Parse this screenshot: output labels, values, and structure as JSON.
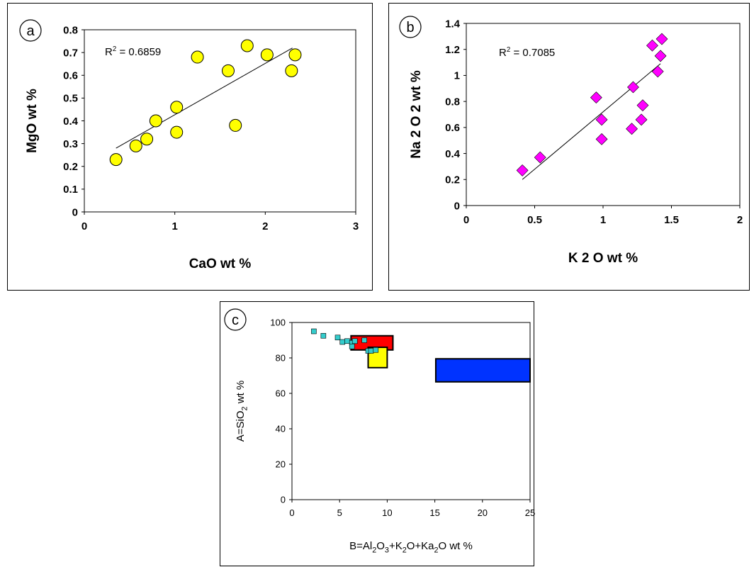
{
  "chart_data": [
    {
      "panel_label": "a",
      "type": "scatter",
      "xlabel": "CaO wt %",
      "ylabel": "MgO wt %",
      "xlim": [
        0,
        3
      ],
      "ylim": [
        0,
        0.8
      ],
      "xticks": [
        "0",
        "1",
        "2",
        "3"
      ],
      "yticks": [
        "0",
        "0.1",
        "0.2",
        "0.3",
        "0.4",
        "0.5",
        "0.6",
        "0.7",
        "0.8"
      ],
      "annotation": "R² = 0.6859",
      "marker": "circle",
      "marker_color": "#ffff00",
      "grid": false,
      "points": [
        {
          "x": 0.35,
          "y": 0.23
        },
        {
          "x": 0.57,
          "y": 0.29
        },
        {
          "x": 0.69,
          "y": 0.32
        },
        {
          "x": 0.79,
          "y": 0.4
        },
        {
          "x": 1.02,
          "y": 0.35
        },
        {
          "x": 1.02,
          "y": 0.46
        },
        {
          "x": 1.25,
          "y": 0.68
        },
        {
          "x": 1.59,
          "y": 0.62
        },
        {
          "x": 1.67,
          "y": 0.38
        },
        {
          "x": 1.8,
          "y": 0.73
        },
        {
          "x": 2.02,
          "y": 0.69
        },
        {
          "x": 2.29,
          "y": 0.62
        },
        {
          "x": 2.33,
          "y": 0.69
        }
      ],
      "trendline": {
        "x1": 0.35,
        "y1": 0.28,
        "x2": 2.3,
        "y2": 0.72
      }
    },
    {
      "panel_label": "b",
      "type": "scatter",
      "xlabel": "K 2 O wt %",
      "ylabel": "Na 2 O 2 wt %",
      "xlim": [
        0,
        2
      ],
      "ylim": [
        0,
        1.4
      ],
      "xticks": [
        "0",
        "0.5",
        "1",
        "1.5",
        "2"
      ],
      "yticks": [
        "0",
        "0.2",
        "0.4",
        "0.6",
        "0.8",
        "1",
        "1.2",
        "1.4"
      ],
      "annotation": "R² = 0.7085",
      "marker": "diamond",
      "marker_color": "#ff00ff",
      "grid": false,
      "points": [
        {
          "x": 0.41,
          "y": 0.27
        },
        {
          "x": 0.54,
          "y": 0.37
        },
        {
          "x": 0.95,
          "y": 0.83
        },
        {
          "x": 0.99,
          "y": 0.66
        },
        {
          "x": 0.99,
          "y": 0.51
        },
        {
          "x": 1.21,
          "y": 0.59
        },
        {
          "x": 1.22,
          "y": 0.91
        },
        {
          "x": 1.28,
          "y": 0.66
        },
        {
          "x": 1.29,
          "y": 0.77
        },
        {
          "x": 1.36,
          "y": 1.23
        },
        {
          "x": 1.4,
          "y": 1.03
        },
        {
          "x": 1.42,
          "y": 1.15
        },
        {
          "x": 1.43,
          "y": 1.28
        }
      ],
      "trendline": {
        "x1": 0.41,
        "y1": 0.2,
        "x2": 1.42,
        "y2": 1.09
      }
    },
    {
      "panel_label": "c",
      "type": "scatter",
      "xlabel": "B=Al2O3+K2O+Ka2O wt %",
      "ylabel": "A=SiO2 wt %",
      "xlim": [
        0,
        25
      ],
      "ylim": [
        0,
        100
      ],
      "xticks": [
        "0",
        "5",
        "10",
        "15",
        "20",
        "25"
      ],
      "yticks": [
        "0",
        "20",
        "40",
        "60",
        "80",
        "100"
      ],
      "marker": "square",
      "marker_color": "#33cccc",
      "grid": false,
      "points": [
        {
          "x": 2.3,
          "y": 95
        },
        {
          "x": 3.3,
          "y": 92.5
        },
        {
          "x": 4.8,
          "y": 91.5
        },
        {
          "x": 5.3,
          "y": 89
        },
        {
          "x": 5.8,
          "y": 89.5
        },
        {
          "x": 6.3,
          "y": 88.5
        },
        {
          "x": 6.6,
          "y": 89.5
        },
        {
          "x": 6.3,
          "y": 86.5
        },
        {
          "x": 7.6,
          "y": 90
        },
        {
          "x": 8.0,
          "y": 84
        },
        {
          "x": 8.3,
          "y": 84
        },
        {
          "x": 8.8,
          "y": 84.5
        }
      ],
      "fields": [
        {
          "color": "#ff0000",
          "x": [
            6.2,
            10.6
          ],
          "y": [
            84.5,
            92.5
          ]
        },
        {
          "color": "#ffff00",
          "x": [
            8.0,
            10.0
          ],
          "y": [
            74.5,
            86.0
          ]
        },
        {
          "color": "#0033ff",
          "x": [
            15.1,
            25.0
          ],
          "y": [
            66.5,
            79.5
          ]
        }
      ]
    }
  ]
}
